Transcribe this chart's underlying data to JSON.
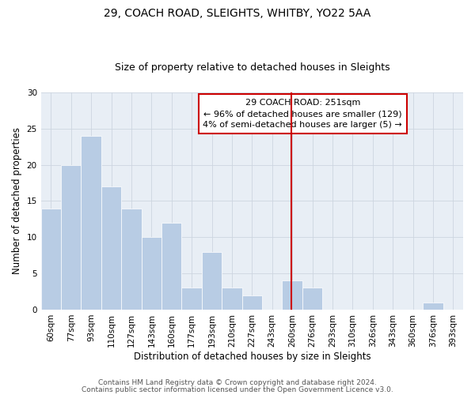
{
  "title": "29, COACH ROAD, SLEIGHTS, WHITBY, YO22 5AA",
  "subtitle": "Size of property relative to detached houses in Sleights",
  "xlabel": "Distribution of detached houses by size in Sleights",
  "ylabel": "Number of detached properties",
  "bin_labels": [
    "60sqm",
    "77sqm",
    "93sqm",
    "110sqm",
    "127sqm",
    "143sqm",
    "160sqm",
    "177sqm",
    "193sqm",
    "210sqm",
    "227sqm",
    "243sqm",
    "260sqm",
    "276sqm",
    "293sqm",
    "310sqm",
    "326sqm",
    "343sqm",
    "360sqm",
    "376sqm",
    "393sqm"
  ],
  "bar_values": [
    14,
    20,
    24,
    17,
    14,
    10,
    12,
    3,
    8,
    3,
    2,
    0,
    4,
    3,
    0,
    0,
    0,
    0,
    0,
    1,
    0
  ],
  "bar_color": "#b8cce4",
  "bar_edge_color": "#ffffff",
  "grid_color": "#cdd5e0",
  "vline_color": "#cc0000",
  "annotation_title": "29 COACH ROAD: 251sqm",
  "annotation_line1": "← 96% of detached houses are smaller (129)",
  "annotation_line2": "4% of semi-detached houses are larger (5) →",
  "annotation_box_color": "#ffffff",
  "annotation_border_color": "#cc0000",
  "ylim": [
    0,
    30
  ],
  "yticks": [
    0,
    5,
    10,
    15,
    20,
    25,
    30
  ],
  "footer1": "Contains HM Land Registry data © Crown copyright and database right 2024.",
  "footer2": "Contains public sector information licensed under the Open Government Licence v3.0.",
  "title_fontsize": 10,
  "subtitle_fontsize": 9,
  "axis_label_fontsize": 8.5,
  "tick_fontsize": 7.5,
  "annotation_fontsize": 8,
  "footer_fontsize": 6.5
}
